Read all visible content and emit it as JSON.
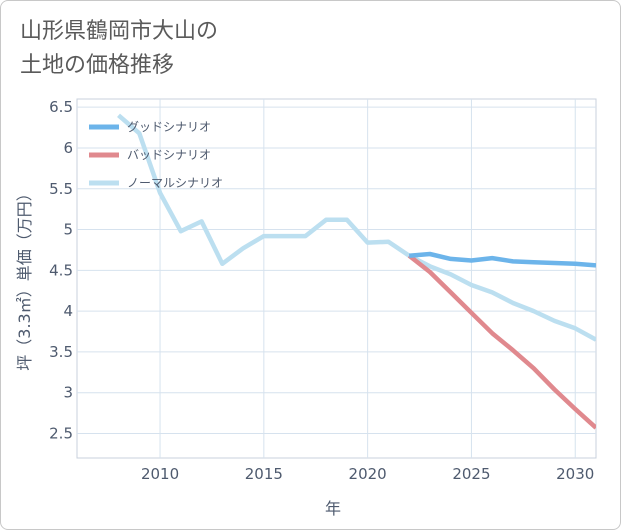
{
  "title_lines": [
    "山形県鶴岡市大山の",
    "土地の価格推移"
  ],
  "chart_data": {
    "type": "line",
    "xlabel": "年",
    "ylabel": "坪（3.3㎡）単価（万円）",
    "xlim": [
      2006,
      2031
    ],
    "ylim": [
      2.2,
      6.6
    ],
    "xticks": [
      2010,
      2015,
      2020,
      2025,
      2030
    ],
    "yticks": [
      2.5,
      3,
      3.5,
      4,
      4.5,
      5,
      5.5,
      6,
      6.5
    ],
    "xtick_labels": [
      "2010",
      "2015",
      "2020",
      "2025",
      "2030"
    ],
    "ytick_labels": [
      "2.5",
      "3",
      "3.5",
      "4",
      "4.5",
      "5",
      "5.5",
      "6",
      "6.5"
    ],
    "grid": true,
    "legend_position": "top-left",
    "series": [
      {
        "name": "グッドシナリオ",
        "color": "#6cb4ea",
        "x": [
          2022,
          2023,
          2024,
          2025,
          2026,
          2027,
          2028,
          2029,
          2030,
          2031
        ],
        "values": [
          4.68,
          4.7,
          4.64,
          4.62,
          4.65,
          4.61,
          4.6,
          4.59,
          4.58,
          4.56
        ]
      },
      {
        "name": "バッドシナリオ",
        "color": "#e0898e",
        "x": [
          2022,
          2023,
          2024,
          2025,
          2026,
          2027,
          2028,
          2029,
          2030,
          2031
        ],
        "values": [
          4.68,
          4.48,
          4.23,
          3.98,
          3.73,
          3.52,
          3.3,
          3.04,
          2.8,
          2.57
        ]
      },
      {
        "name": "ノーマルシナリオ",
        "color": "#bcdff0",
        "x": [
          2008,
          2009,
          2010,
          2011,
          2012,
          2013,
          2014,
          2015,
          2016,
          2017,
          2018,
          2019,
          2020,
          2021,
          2022,
          2023,
          2024,
          2025,
          2026,
          2027,
          2028,
          2029,
          2030,
          2031
        ],
        "values": [
          6.4,
          6.18,
          5.45,
          4.98,
          5.1,
          4.58,
          4.77,
          4.92,
          4.92,
          4.92,
          5.12,
          5.12,
          4.84,
          4.85,
          4.68,
          4.55,
          4.45,
          4.32,
          4.23,
          4.1,
          4.0,
          3.88,
          3.79,
          3.65
        ]
      }
    ]
  }
}
